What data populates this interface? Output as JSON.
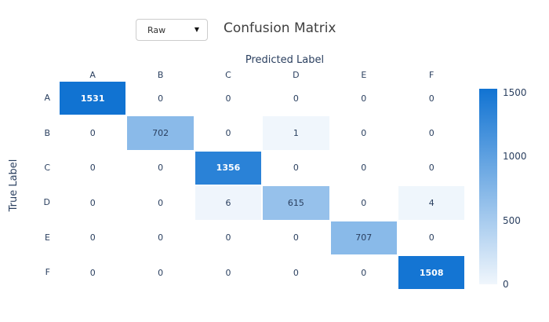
{
  "header": {
    "dropdown": {
      "value": "Raw",
      "arrow_icon": "▼"
    },
    "title": "Confusion Matrix"
  },
  "chart_data": {
    "type": "heatmap",
    "title": "Confusion Matrix",
    "xlabel": "Predicted Label",
    "ylabel": "True Label",
    "x_categories": [
      "A",
      "B",
      "C",
      "D",
      "E",
      "F"
    ],
    "y_categories": [
      "A",
      "B",
      "C",
      "D",
      "E",
      "F"
    ],
    "matrix": [
      [
        1531,
        0,
        0,
        0,
        0,
        0
      ],
      [
        0,
        702,
        0,
        1,
        0,
        0
      ],
      [
        0,
        0,
        1356,
        0,
        0,
        0
      ],
      [
        0,
        0,
        6,
        615,
        0,
        4
      ],
      [
        0,
        0,
        0,
        0,
        707,
        0
      ],
      [
        0,
        0,
        0,
        0,
        0,
        1508
      ]
    ],
    "vmin": 0,
    "vmax": 1531,
    "colorbar_ticks": [
      1500,
      1000,
      500,
      0
    ],
    "colorscale": {
      "zero": "#ffffff",
      "low": "#f0f6fc",
      "high": "#1173d2"
    },
    "text_color_dark": "#2a3f5f",
    "text_color_light": "#ffffff",
    "legend_position": "right",
    "grid": false
  }
}
